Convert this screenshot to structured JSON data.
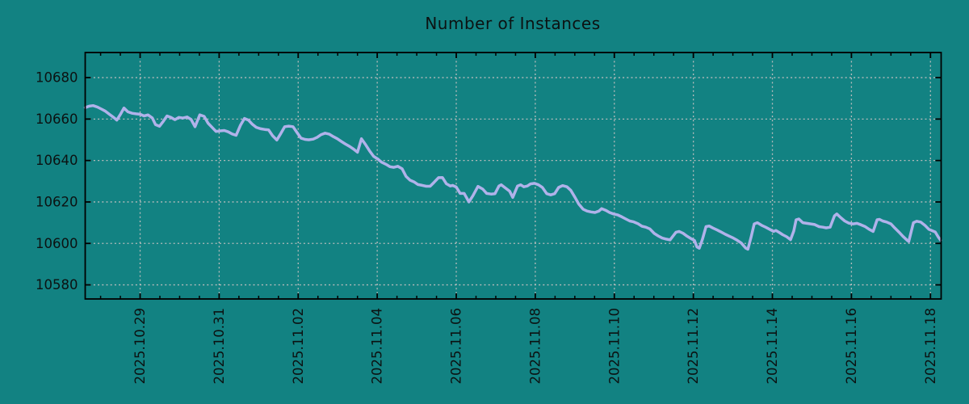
{
  "colors": {
    "background": "#128282",
    "line": "#b0b2ea",
    "grid": "#b8bcbc",
    "axis": "#000000",
    "text": "#0c1212"
  },
  "chart_data": {
    "type": "line",
    "title": "Number of Instances",
    "xlabel": "",
    "ylabel": "",
    "legend": null,
    "grid": true,
    "x_unit": "days since 2025-10-27 00:00",
    "x_range": [
      0.61,
      22.27
    ],
    "y_range": [
      10573.2,
      10692.1
    ],
    "y_ticks": [
      10580,
      10600,
      10620,
      10640,
      10660,
      10680
    ],
    "y_tick_labels": [
      "10580",
      "10600",
      "10620",
      "10640",
      "10660",
      "10680"
    ],
    "x_ticks": [
      2,
      4,
      6,
      8,
      10,
      12,
      14,
      16,
      18,
      20,
      22
    ],
    "x_tick_labels": [
      "2025.10.29",
      "2025.10.31",
      "2025.11.02",
      "2025.11.04",
      "2025.11.06",
      "2025.11.08",
      "2025.11.10",
      "2025.11.12",
      "2025.11.14",
      "2025.11.16",
      "2025.11.18"
    ],
    "x_minor_tick_step": 0.5,
    "series": [
      {
        "name": "instances",
        "points": [
          [
            0.61,
            10665.5
          ],
          [
            0.71,
            10666.2
          ],
          [
            0.81,
            10666.5
          ],
          [
            0.92,
            10665.8
          ],
          [
            1.02,
            10664.8
          ],
          [
            1.12,
            10663.8
          ],
          [
            1.22,
            10662.3
          ],
          [
            1.33,
            10660.8
          ],
          [
            1.41,
            10659.5
          ],
          [
            1.51,
            10662.5
          ],
          [
            1.59,
            10665.3
          ],
          [
            1.69,
            10663.5
          ],
          [
            1.8,
            10662.8
          ],
          [
            1.9,
            10662.5
          ],
          [
            2.0,
            10662.3
          ],
          [
            2.1,
            10661.5
          ],
          [
            2.2,
            10662.0
          ],
          [
            2.31,
            10660.5
          ],
          [
            2.39,
            10657.3
          ],
          [
            2.49,
            10656.5
          ],
          [
            2.59,
            10659.0
          ],
          [
            2.68,
            10661.5
          ],
          [
            2.78,
            10660.8
          ],
          [
            2.88,
            10659.7
          ],
          [
            2.98,
            10660.8
          ],
          [
            3.08,
            10660.5
          ],
          [
            3.19,
            10661.0
          ],
          [
            3.29,
            10659.8
          ],
          [
            3.39,
            10656.3
          ],
          [
            3.51,
            10662.0
          ],
          [
            3.62,
            10661.3
          ],
          [
            3.72,
            10658.0
          ],
          [
            3.82,
            10656.0
          ],
          [
            3.92,
            10654.0
          ],
          [
            4.02,
            10654.3
          ],
          [
            4.13,
            10654.5
          ],
          [
            4.23,
            10653.8
          ],
          [
            4.33,
            10652.8
          ],
          [
            4.43,
            10652.2
          ],
          [
            4.54,
            10657.0
          ],
          [
            4.64,
            10660.3
          ],
          [
            4.74,
            10659.5
          ],
          [
            4.84,
            10657.5
          ],
          [
            4.94,
            10656.0
          ],
          [
            5.05,
            10655.3
          ],
          [
            5.15,
            10655.0
          ],
          [
            5.25,
            10654.8
          ],
          [
            5.35,
            10652.0
          ],
          [
            5.46,
            10649.9
          ],
          [
            5.56,
            10653.0
          ],
          [
            5.66,
            10656.3
          ],
          [
            5.76,
            10656.6
          ],
          [
            5.87,
            10656.3
          ],
          [
            5.97,
            10653.5
          ],
          [
            6.07,
            10650.8
          ],
          [
            6.17,
            10650.2
          ],
          [
            6.27,
            10650.0
          ],
          [
            6.38,
            10650.3
          ],
          [
            6.48,
            10651.2
          ],
          [
            6.58,
            10652.5
          ],
          [
            6.68,
            10653.2
          ],
          [
            6.79,
            10652.7
          ],
          [
            6.89,
            10651.5
          ],
          [
            6.99,
            10650.5
          ],
          [
            7.09,
            10649.2
          ],
          [
            7.19,
            10648.0
          ],
          [
            7.3,
            10646.8
          ],
          [
            7.4,
            10645.5
          ],
          [
            7.5,
            10644.0
          ],
          [
            7.6,
            10650.5
          ],
          [
            7.71,
            10647.5
          ],
          [
            7.81,
            10644.5
          ],
          [
            7.91,
            10642.0
          ],
          [
            8.01,
            10640.8
          ],
          [
            8.11,
            10639.2
          ],
          [
            8.22,
            10638.2
          ],
          [
            8.32,
            10637.0
          ],
          [
            8.42,
            10636.7
          ],
          [
            8.52,
            10637.2
          ],
          [
            8.63,
            10636.0
          ],
          [
            8.73,
            10632.3
          ],
          [
            8.83,
            10630.5
          ],
          [
            8.93,
            10629.7
          ],
          [
            9.03,
            10628.4
          ],
          [
            9.14,
            10628.0
          ],
          [
            9.24,
            10627.6
          ],
          [
            9.34,
            10627.6
          ],
          [
            9.44,
            10629.5
          ],
          [
            9.55,
            10631.7
          ],
          [
            9.65,
            10631.8
          ],
          [
            9.75,
            10628.8
          ],
          [
            9.85,
            10627.7
          ],
          [
            9.91,
            10628.0
          ],
          [
            10.0,
            10627.2
          ],
          [
            10.1,
            10624.1
          ],
          [
            10.2,
            10624.1
          ],
          [
            10.32,
            10620.0
          ],
          [
            10.42,
            10623.0
          ],
          [
            10.55,
            10627.5
          ],
          [
            10.67,
            10626.2
          ],
          [
            10.77,
            10624.1
          ],
          [
            10.88,
            10623.8
          ],
          [
            10.98,
            10624.0
          ],
          [
            11.08,
            10627.7
          ],
          [
            11.14,
            10628.3
          ],
          [
            11.24,
            10626.8
          ],
          [
            11.35,
            10625.2
          ],
          [
            11.43,
            10622.2
          ],
          [
            11.55,
            10627.7
          ],
          [
            11.63,
            10628.3
          ],
          [
            11.71,
            10627.3
          ],
          [
            11.8,
            10627.7
          ],
          [
            11.88,
            10628.7
          ],
          [
            11.98,
            10629.0
          ],
          [
            12.08,
            10628.3
          ],
          [
            12.18,
            10627.0
          ],
          [
            12.29,
            10624.0
          ],
          [
            12.39,
            10623.4
          ],
          [
            12.49,
            10624.0
          ],
          [
            12.59,
            10627.0
          ],
          [
            12.69,
            10627.9
          ],
          [
            12.8,
            10627.3
          ],
          [
            12.9,
            10625.6
          ],
          [
            13.0,
            10622.4
          ],
          [
            13.1,
            10619.0
          ],
          [
            13.21,
            10616.5
          ],
          [
            13.31,
            10615.6
          ],
          [
            13.41,
            10615.2
          ],
          [
            13.51,
            10614.9
          ],
          [
            13.61,
            10615.6
          ],
          [
            13.68,
            10616.8
          ],
          [
            13.78,
            10616.0
          ],
          [
            13.88,
            10614.9
          ],
          [
            13.98,
            10614.2
          ],
          [
            14.08,
            10613.8
          ],
          [
            14.19,
            10612.8
          ],
          [
            14.29,
            10611.8
          ],
          [
            14.39,
            10610.8
          ],
          [
            14.49,
            10610.4
          ],
          [
            14.6,
            10609.5
          ],
          [
            14.7,
            10608.3
          ],
          [
            14.8,
            10607.8
          ],
          [
            14.9,
            10607.0
          ],
          [
            15.01,
            10604.8
          ],
          [
            15.11,
            10603.6
          ],
          [
            15.21,
            10602.6
          ],
          [
            15.31,
            10602.1
          ],
          [
            15.41,
            10601.7
          ],
          [
            15.56,
            10605.4
          ],
          [
            15.64,
            10605.8
          ],
          [
            15.74,
            10604.9
          ],
          [
            15.84,
            10603.5
          ],
          [
            15.95,
            10602.2
          ],
          [
            16.03,
            10601.4
          ],
          [
            16.09,
            10598.3
          ],
          [
            16.15,
            10597.7
          ],
          [
            16.23,
            10602.0
          ],
          [
            16.32,
            10608.1
          ],
          [
            16.4,
            10608.4
          ],
          [
            16.5,
            10607.4
          ],
          [
            16.6,
            10606.5
          ],
          [
            16.7,
            10605.5
          ],
          [
            16.81,
            10604.4
          ],
          [
            16.91,
            10603.5
          ],
          [
            17.01,
            10602.6
          ],
          [
            17.11,
            10601.5
          ],
          [
            17.21,
            10600.2
          ],
          [
            17.32,
            10597.8
          ],
          [
            17.38,
            10597.2
          ],
          [
            17.46,
            10603.0
          ],
          [
            17.54,
            10609.4
          ],
          [
            17.62,
            10610.0
          ],
          [
            17.73,
            10608.7
          ],
          [
            17.83,
            10607.8
          ],
          [
            17.93,
            10606.8
          ],
          [
            18.03,
            10605.8
          ],
          [
            18.09,
            10606.2
          ],
          [
            18.18,
            10605.2
          ],
          [
            18.26,
            10604.2
          ],
          [
            18.36,
            10603.2
          ],
          [
            18.46,
            10601.8
          ],
          [
            18.54,
            10606.0
          ],
          [
            18.6,
            10611.4
          ],
          [
            18.67,
            10611.8
          ],
          [
            18.77,
            10610.0
          ],
          [
            18.87,
            10609.7
          ],
          [
            18.97,
            10609.4
          ],
          [
            19.07,
            10609.1
          ],
          [
            19.18,
            10608.1
          ],
          [
            19.28,
            10607.8
          ],
          [
            19.36,
            10607.5
          ],
          [
            19.46,
            10607.8
          ],
          [
            19.57,
            10613.3
          ],
          [
            19.63,
            10614.2
          ],
          [
            19.73,
            10612.4
          ],
          [
            19.83,
            10610.8
          ],
          [
            19.93,
            10609.8
          ],
          [
            20.04,
            10609.4
          ],
          [
            20.14,
            10609.7
          ],
          [
            20.24,
            10609.0
          ],
          [
            20.34,
            10608.2
          ],
          [
            20.45,
            10606.8
          ],
          [
            20.55,
            10605.8
          ],
          [
            20.65,
            10611.4
          ],
          [
            20.71,
            10611.6
          ],
          [
            20.79,
            10610.8
          ],
          [
            20.89,
            10610.3
          ],
          [
            21.0,
            10609.4
          ],
          [
            21.1,
            10607.4
          ],
          [
            21.2,
            10605.5
          ],
          [
            21.3,
            10603.5
          ],
          [
            21.41,
            10601.5
          ],
          [
            21.45,
            10600.9
          ],
          [
            21.57,
            10610.0
          ],
          [
            21.65,
            10610.7
          ],
          [
            21.75,
            10610.3
          ],
          [
            21.86,
            10608.7
          ],
          [
            21.96,
            10606.8
          ],
          [
            22.06,
            10606.0
          ],
          [
            22.12,
            10605.5
          ],
          [
            22.2,
            10603.0
          ],
          [
            22.26,
            10601.5
          ]
        ]
      }
    ]
  }
}
